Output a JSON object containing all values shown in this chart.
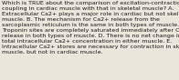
{
  "text": "Which is TRUE about the comparison of excitation-contraction\ncoupling in cardiac muscle with that in skeletal muscle? A.\nExtracellular Ca2+ plays a major role in cardiac but not skeletal\nmuscle. B. The mechanism for Ca2+ release from the\nsarcoplasmic reticulum is the same in both types of muscle. C.\nTroponin sites are completely saturated immediately after Ca2+\nrelease in both types of muscle. D. There is no net change in\ntotal intracellular Ca2+ concentration in either muscle. E.\nIntracellular Ca2+ stores are necessary for contraction in skeletal\nmuscle, but not in cardiac muscle.",
  "bg_color": "#eae6dc",
  "text_color": "#1a1a1a",
  "font_size": 4.55,
  "fig_width": 1.96,
  "fig_height": 0.88,
  "dpi": 100
}
